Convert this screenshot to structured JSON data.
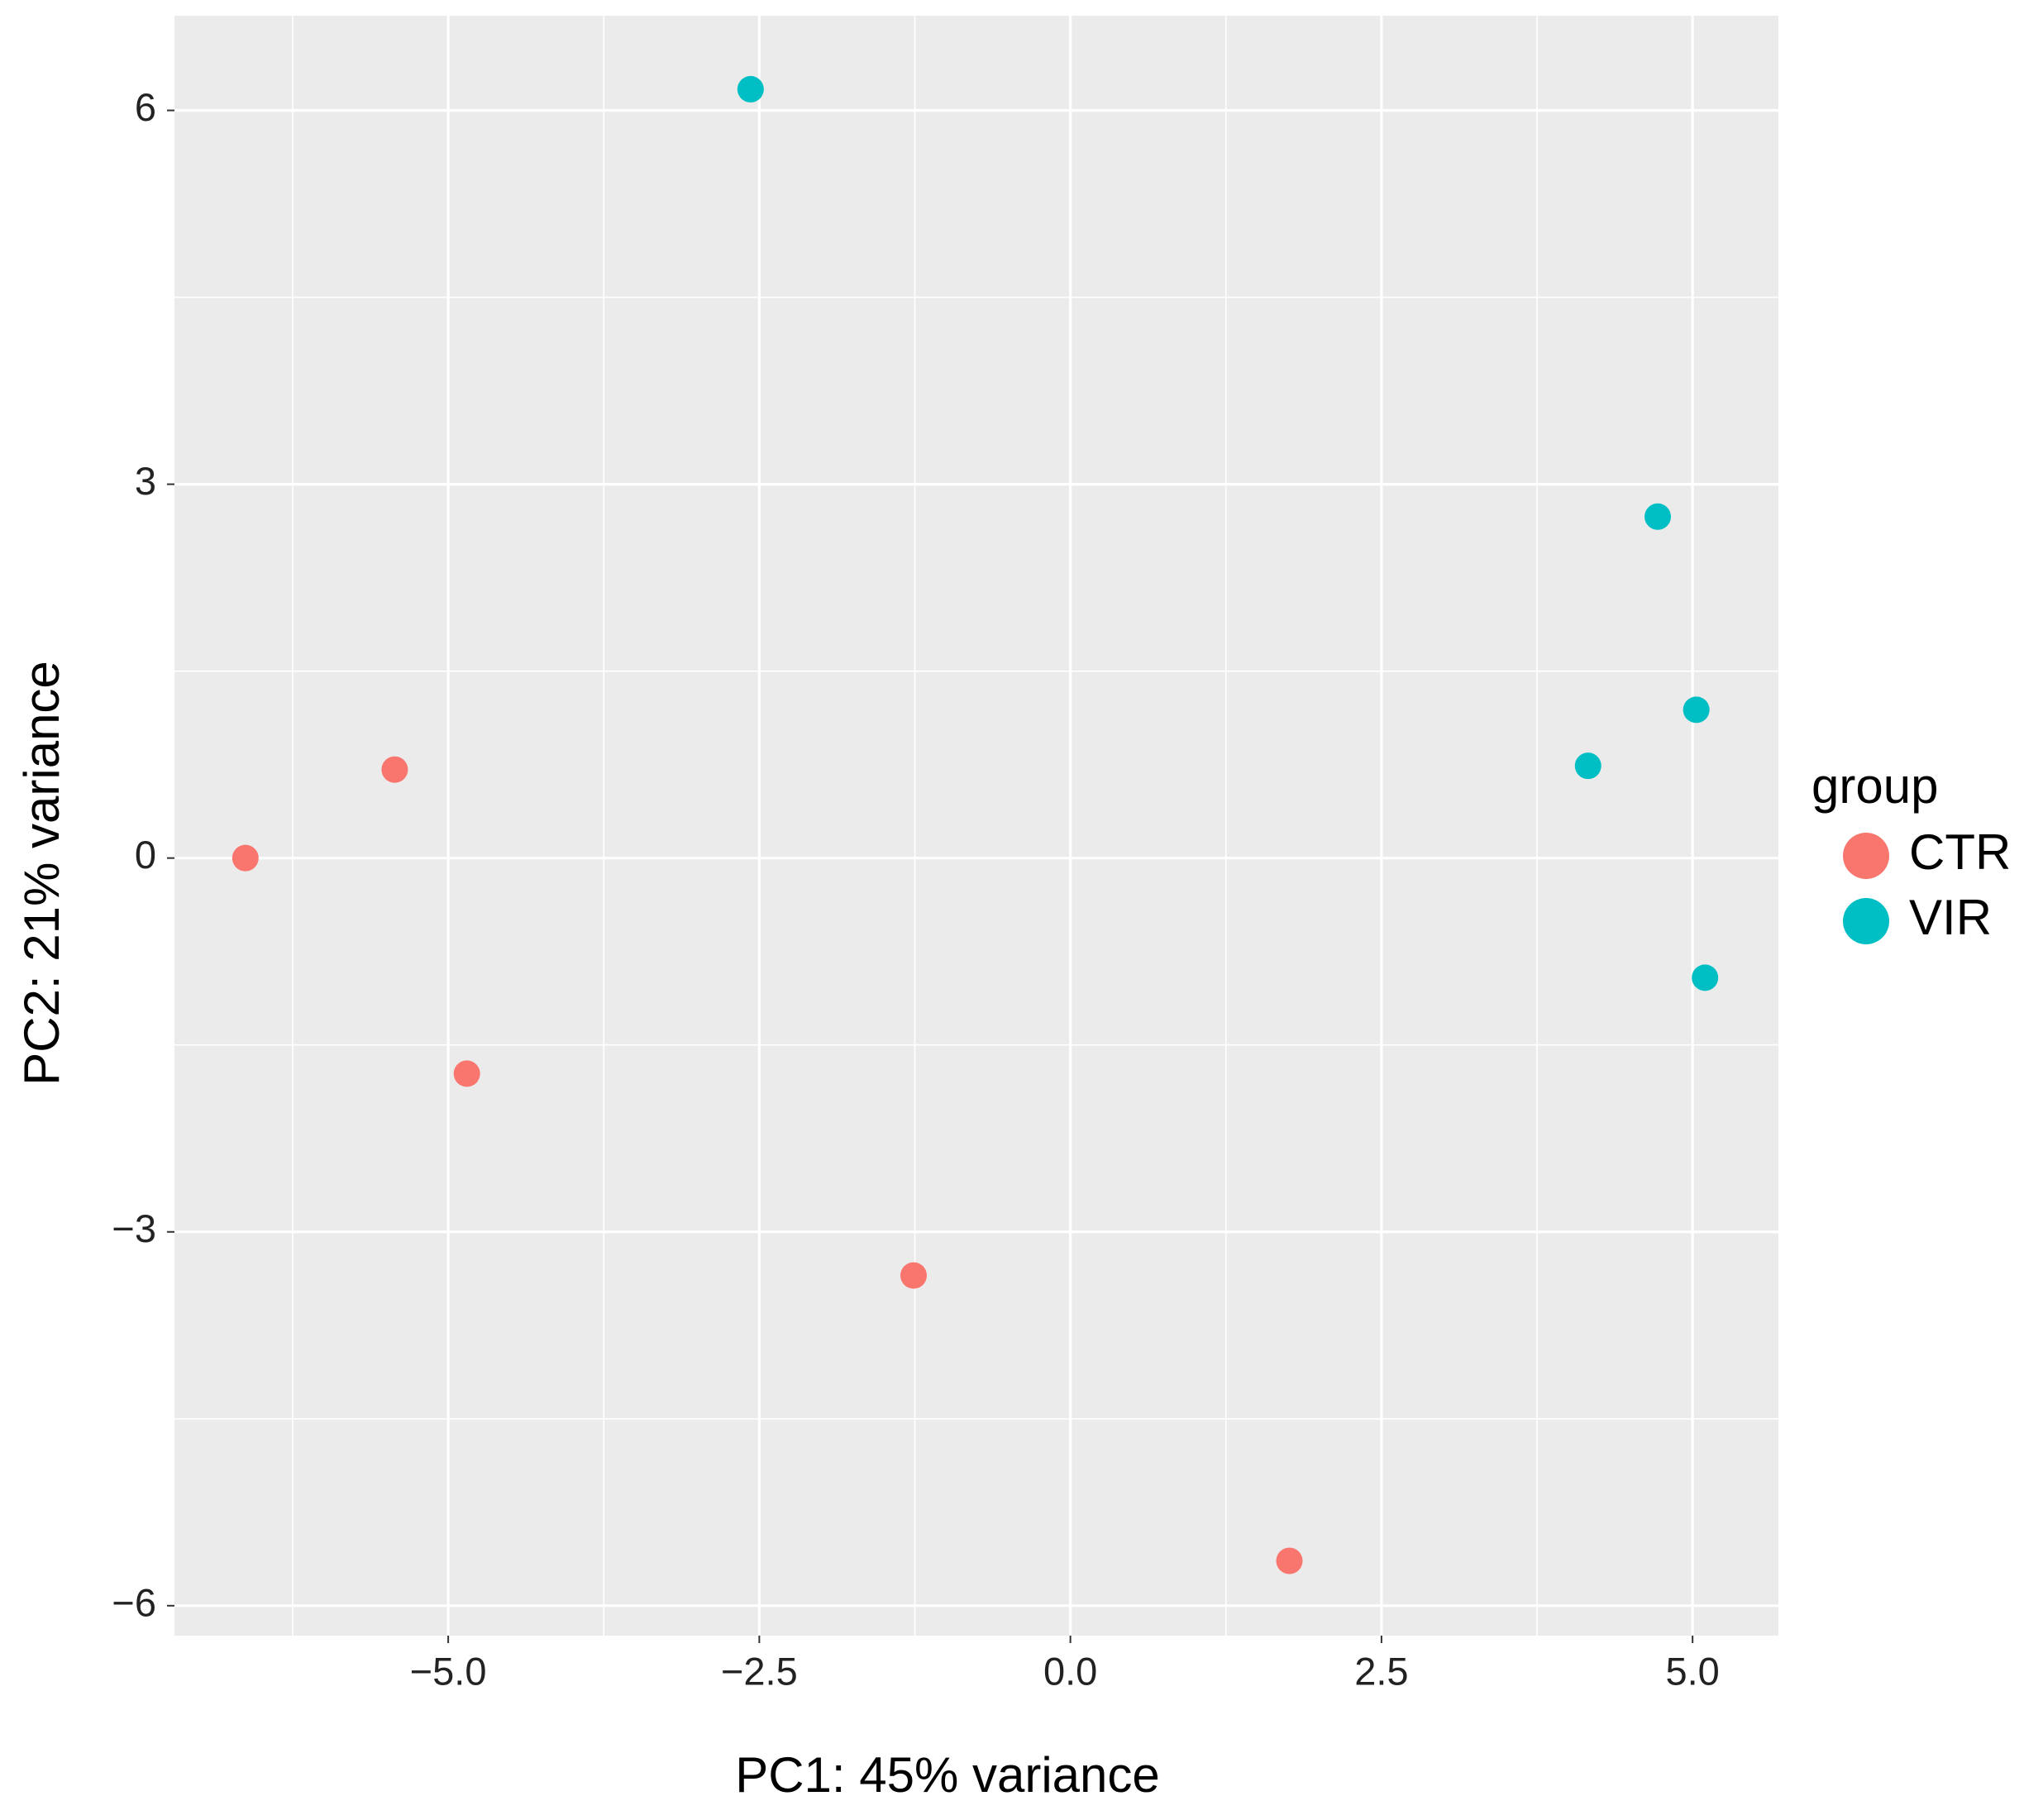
{
  "chart_data": {
    "type": "scatter",
    "x_label": "PC1: 45% variance",
    "y_label": "PC2: 21% variance",
    "legend_title": "group",
    "legend_position": "right",
    "grid": true,
    "series": [
      {
        "name": "CTR",
        "color": "#f8766d",
        "x": [
          -6.63,
          -5.43,
          -4.85,
          -1.26,
          1.76
        ],
        "values": [
          0.0,
          0.71,
          -1.73,
          -3.35,
          -5.64
        ]
      },
      {
        "name": "VIR",
        "color": "#00bfc4",
        "x": [
          -2.57,
          4.72,
          5.03,
          4.16,
          5.1
        ],
        "values": [
          6.17,
          2.74,
          1.19,
          0.74,
          -0.96
        ]
      }
    ],
    "xlim": [
      -7.2,
      5.69
    ],
    "ylim": [
      -6.24,
      6.76
    ],
    "xticks": [
      {
        "value": -5,
        "label": "−5.0"
      },
      {
        "value": -2.5,
        "label": "−2.5"
      },
      {
        "value": 0,
        "label": "0.0"
      },
      {
        "value": 2.5,
        "label": "2.5"
      },
      {
        "value": 5,
        "label": "5.0"
      }
    ],
    "yticks": [
      {
        "value": -6,
        "label": "−6"
      },
      {
        "value": -3,
        "label": "−3"
      },
      0,
      3,
      6
    ]
  }
}
